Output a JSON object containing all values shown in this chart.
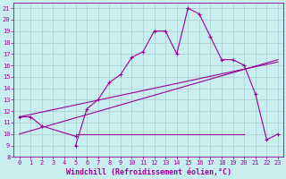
{
  "xlabel": "Windchill (Refroidissement éolien,°C)",
  "background_color": "#c8eef0",
  "grid_color": "#aacccc",
  "line_color": "#990099",
  "series1_x": [
    0,
    1,
    2,
    5
  ],
  "series1_y": [
    11.5,
    11.5,
    10.7,
    9.8
  ],
  "series2_x": [
    5,
    6,
    7,
    8,
    9,
    10,
    11,
    12,
    13,
    14,
    15,
    16,
    17,
    18,
    19,
    20,
    21,
    22,
    23
  ],
  "series2_y": [
    9.0,
    12.2,
    13.0,
    14.5,
    15.2,
    16.7,
    17.2,
    19.0,
    19.0,
    17.0,
    21.0,
    20.5,
    18.5,
    16.5,
    16.5,
    16.0,
    13.5,
    9.5,
    10.0
  ],
  "series3_x": [
    0,
    23
  ],
  "series3_y": [
    11.5,
    16.3
  ],
  "series4_x": [
    0,
    23
  ],
  "series4_y": [
    10.0,
    16.5
  ],
  "series5_x": [
    5,
    20
  ],
  "series5_y": [
    10.0,
    10.0
  ],
  "ylim": [
    8,
    21.5
  ],
  "xlim": [
    -0.5,
    23.5
  ],
  "yticks": [
    8,
    9,
    10,
    11,
    12,
    13,
    14,
    15,
    16,
    17,
    18,
    19,
    20,
    21
  ],
  "xticks": [
    0,
    1,
    2,
    3,
    4,
    5,
    6,
    7,
    8,
    9,
    10,
    11,
    12,
    13,
    14,
    15,
    16,
    17,
    18,
    19,
    20,
    21,
    22,
    23
  ],
  "tick_fontsize": 5,
  "xlabel_fontsize": 6
}
